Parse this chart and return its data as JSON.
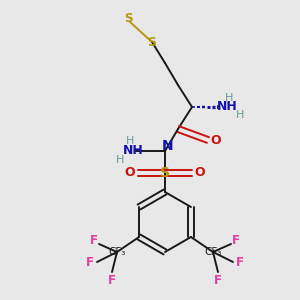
{
  "bg_color": "#e8e8e8",
  "colors": {
    "bond": "#1a1a1a",
    "S_yellow": "#b8960c",
    "N_blue": "#1414aa",
    "O_red": "#cc1111",
    "F_pink": "#e040a0",
    "H_gray": "#6a9a9a",
    "wedge_blue": "#1414aa"
  },
  "layout": {
    "xlim": [
      0,
      300
    ],
    "ylim": [
      0,
      300
    ]
  }
}
